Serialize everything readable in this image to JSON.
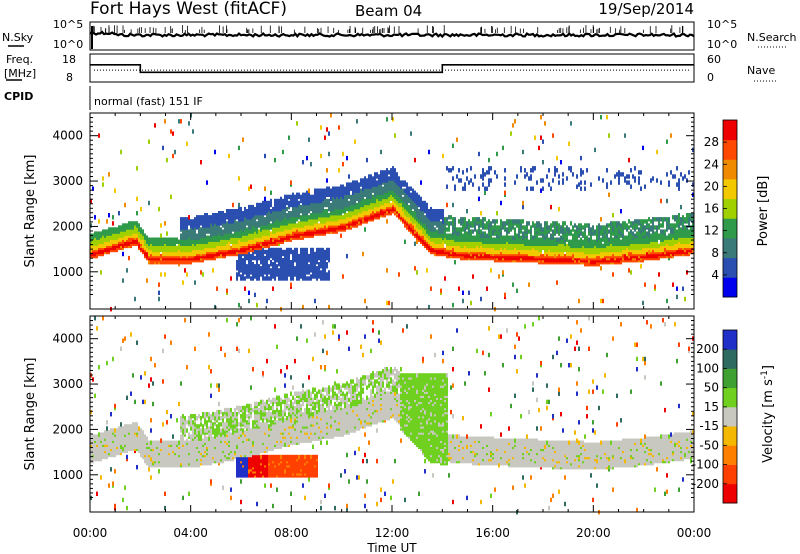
{
  "header": {
    "title": "Fort Hays West (fitACF)",
    "beam": "Beam 04",
    "date": "19/Sep/2014"
  },
  "noise_panel": {
    "left_label": "N.Sky",
    "left_ticks": [
      "10^5",
      "10^0"
    ],
    "right_label": "N.Search",
    "right_ticks": [
      "10^5",
      "10^0"
    ]
  },
  "freq_panel": {
    "left_label_1": "Freq.",
    "left_label_2": "[MHz]",
    "left_ticks": [
      "18",
      "8"
    ],
    "right_label": "Nave",
    "right_ticks": [
      "60",
      "0"
    ]
  },
  "cpid_panel": {
    "label": "CPID",
    "text": "normal (fast) 151 IF"
  },
  "x_axis": {
    "label": "Time UT",
    "ticks": [
      "00:00",
      "04:00",
      "08:00",
      "12:00",
      "16:00",
      "20:00",
      "00:00"
    ]
  },
  "colors": {
    "power": [
      "#0000ee",
      "#2a4fb0",
      "#3a7a78",
      "#2f9a4a",
      "#a0d000",
      "#f2c800",
      "#f08a00",
      "#ff4800",
      "#ee0000"
    ],
    "velocity": [
      "#1f2fc8",
      "#2f6a60",
      "#3ea030",
      "#6fd020",
      "#c8c8c0",
      "#f4b800",
      "#ff8000",
      "#ff4000",
      "#ee0000"
    ]
  },
  "chart_data": [
    {
      "type": "line",
      "title": "",
      "ylabel": "N.Sky",
      "y_scale": "log",
      "ylim": [
        1,
        100000
      ],
      "x": [
        "00:00",
        "04:00",
        "08:00",
        "12:00",
        "16:00",
        "20:00",
        "24:00"
      ],
      "series": [
        {
          "values": [
            1000,
            1000,
            1000,
            1000,
            800,
            700,
            900
          ]
        }
      ]
    },
    {
      "type": "line",
      "title": "",
      "ylabel": "Freq. [MHz]",
      "ylim": [
        8,
        18
      ],
      "x": [
        "00:00",
        "02:00",
        "02:00",
        "14:00",
        "14:00",
        "24:00"
      ],
      "series": [
        {
          "name": "Freq.",
          "values": [
            14.5,
            14.5,
            11.5,
            11.5,
            14.5,
            14.5
          ]
        },
        {
          "name": "Nave",
          "values": [
            26,
            26,
            26,
            26,
            26,
            26
          ]
        }
      ]
    },
    {
      "type": "heatmap",
      "title": "",
      "ylabel": "Slant Range [km]",
      "xlabel": "Time UT",
      "yticks": [
        "1000",
        "2000",
        "3000",
        "4000"
      ],
      "ylim": [
        180,
        4500
      ],
      "colorbar": {
        "label": "Power [dB]",
        "ticks": [
          "28",
          "24",
          "20",
          "16",
          "12",
          "8",
          "4"
        ],
        "range": [
          0,
          30
        ]
      },
      "features": [
        {
          "time_hours": [
            0,
            1.2,
            1.8,
            2.3,
            4,
            6,
            8,
            10,
            12,
            13.5,
            14.5,
            16,
            18,
            20,
            22,
            24
          ],
          "range_km": [
            1400,
            1600,
            1700,
            1300,
            1300,
            1500,
            1800,
            2000,
            2400,
            1500,
            1400,
            1350,
            1300,
            1250,
            1350,
            1500
          ],
          "power_db": 28
        }
      ]
    },
    {
      "type": "heatmap",
      "title": "",
      "ylabel": "Slant Range [km]",
      "xlabel": "Time UT",
      "yticks": [
        "1000",
        "2000",
        "3000",
        "4000"
      ],
      "ylim": [
        180,
        4500
      ],
      "colorbar": {
        "label": "Velocity [m s^-1]",
        "ticks": [
          "200",
          "100",
          "50",
          "15",
          "-15",
          "-50",
          "-100",
          "-200"
        ],
        "range": [
          -250,
          250
        ]
      },
      "features": [
        {
          "time_hours": [
            6,
            9
          ],
          "range_km": [
            1100,
            1400
          ],
          "velocity_ms": -200
        },
        {
          "time_hours": [
            12.5,
            14
          ],
          "range_km": [
            1400,
            3000
          ],
          "velocity_ms": 50
        }
      ]
    }
  ]
}
